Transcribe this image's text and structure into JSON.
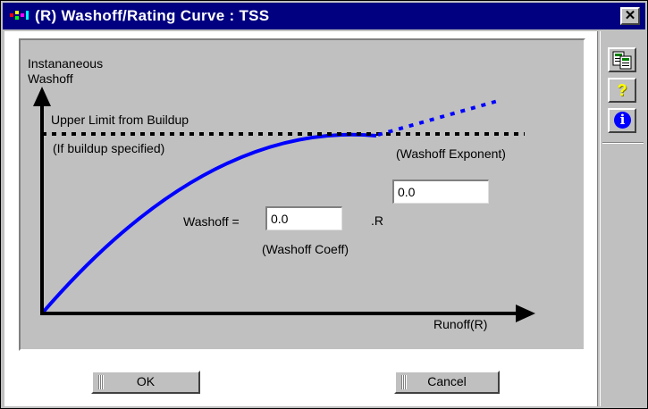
{
  "window": {
    "title": "(R) Washoff/Rating Curve : TSS",
    "close_label": "✕"
  },
  "graph": {
    "y_axis_label_line1": "Instananeous",
    "y_axis_label_line2": "Washoff",
    "x_axis_label": "Runoff(R)",
    "limit_label": "Upper Limit from Buildup",
    "limit_sublabel": "(If buildup specified)",
    "exponent_label": "(Washoff Exponent)",
    "coeff_label": "(Washoff Coeff)",
    "equation_label": "Washoff =",
    "equation_suffix": ".R"
  },
  "fields": {
    "washoff_coeff": "0.0",
    "washoff_exponent": "0.0"
  },
  "buttons": {
    "ok": "OK",
    "cancel": "Cancel"
  },
  "toolbar": {
    "help_glyph": "?",
    "info_glyph": "i"
  },
  "colors": {
    "title_bar": "#000080",
    "curve": "#0000ff",
    "panel": "#c0c0c0"
  }
}
